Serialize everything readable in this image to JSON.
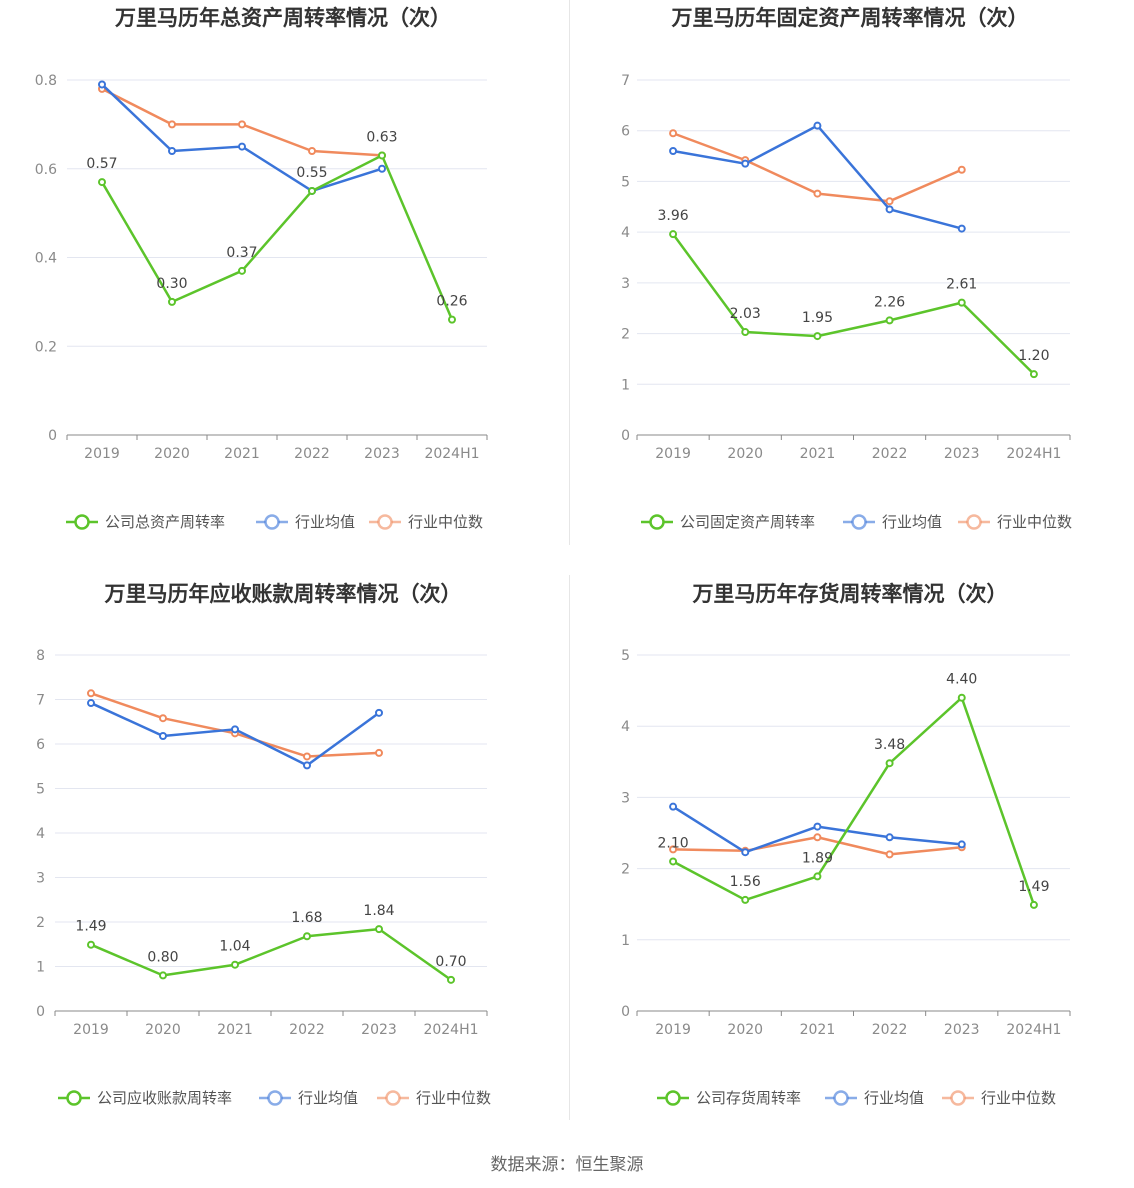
{
  "source_label": "数据来源：恒生聚源",
  "colors": {
    "company": "#5cc42b",
    "average": "#3a74d9",
    "median": "#f08a5d",
    "grid": "#e3e6f0",
    "axis": "#888888"
  },
  "chart_data": [
    {
      "type": "line",
      "title": "万里马历年总资产周转率情况（次）",
      "categories": [
        "2019",
        "2020",
        "2021",
        "2022",
        "2023",
        "2024H1"
      ],
      "ylim": [
        0,
        0.8
      ],
      "yticks": [
        "0",
        "0.2",
        "0.4",
        "0.6",
        "0.8"
      ],
      "series": [
        {
          "name": "公司总资产周转率",
          "values": [
            0.57,
            0.3,
            0.37,
            0.55,
            0.63,
            0.26
          ],
          "labels": [
            "0.57",
            "0.30",
            "0.37",
            "0.55",
            "0.63",
            "0.26"
          ]
        },
        {
          "name": "行业均值",
          "values": [
            0.79,
            0.64,
            0.65,
            0.55,
            0.6,
            null
          ]
        },
        {
          "name": "行业中位数",
          "values": [
            0.78,
            0.7,
            0.7,
            0.64,
            0.63,
            null
          ]
        }
      ]
    },
    {
      "type": "line",
      "title": "万里马历年固定资产周转率情况（次）",
      "categories": [
        "2019",
        "2020",
        "2021",
        "2022",
        "2023",
        "2024H1"
      ],
      "ylim": [
        0,
        7
      ],
      "yticks": [
        "0",
        "1",
        "2",
        "3",
        "4",
        "5",
        "6",
        "7"
      ],
      "series": [
        {
          "name": "公司固定资产周转率",
          "values": [
            3.96,
            2.03,
            1.95,
            2.26,
            2.61,
            1.2
          ],
          "labels": [
            "3.96",
            "2.03",
            "1.95",
            "2.26",
            "2.61",
            "1.20"
          ]
        },
        {
          "name": "行业均值",
          "values": [
            5.6,
            5.35,
            6.1,
            4.45,
            4.07,
            null
          ]
        },
        {
          "name": "行业中位数",
          "values": [
            5.95,
            5.42,
            4.76,
            4.61,
            5.23,
            null
          ]
        }
      ]
    },
    {
      "type": "line",
      "title": "万里马历年应收账款周转率情况（次）",
      "categories": [
        "2019",
        "2020",
        "2021",
        "2022",
        "2023",
        "2024H1"
      ],
      "ylim": [
        0,
        8
      ],
      "yticks": [
        "0",
        "1",
        "2",
        "3",
        "4",
        "5",
        "6",
        "7",
        "8"
      ],
      "series": [
        {
          "name": "公司应收账款周转率",
          "values": [
            1.49,
            0.8,
            1.04,
            1.68,
            1.84,
            0.7
          ],
          "labels": [
            "1.49",
            "0.80",
            "1.04",
            "1.68",
            "1.84",
            "0.70"
          ]
        },
        {
          "name": "行业均值",
          "values": [
            6.92,
            6.18,
            6.33,
            5.52,
            6.7,
            null
          ]
        },
        {
          "name": "行业中位数",
          "values": [
            7.14,
            6.58,
            6.24,
            5.72,
            5.8,
            null
          ]
        }
      ]
    },
    {
      "type": "line",
      "title": "万里马历年存货周转率情况（次）",
      "categories": [
        "2019",
        "2020",
        "2021",
        "2022",
        "2023",
        "2024H1"
      ],
      "ylim": [
        0,
        5
      ],
      "yticks": [
        "0",
        "1",
        "2",
        "3",
        "4",
        "5"
      ],
      "series": [
        {
          "name": "公司存货周转率",
          "values": [
            2.1,
            1.56,
            1.89,
            3.48,
            4.4,
            1.49
          ],
          "labels": [
            "2.10",
            "1.56",
            "1.89",
            "3.48",
            "4.40",
            "1.49"
          ]
        },
        {
          "name": "行业均值",
          "values": [
            2.87,
            2.23,
            2.59,
            2.44,
            2.34,
            null
          ]
        },
        {
          "name": "行业中位数",
          "values": [
            2.27,
            2.25,
            2.44,
            2.2,
            2.3,
            null
          ]
        }
      ]
    }
  ]
}
